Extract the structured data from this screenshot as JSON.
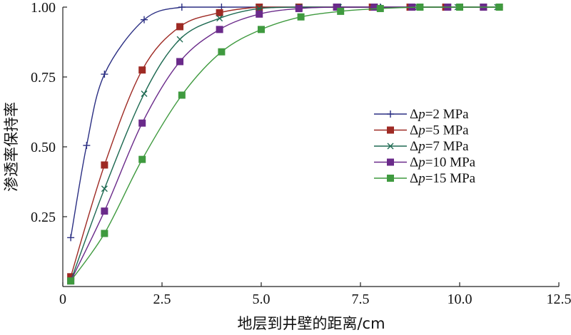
{
  "chart_data": {
    "type": "line",
    "xlabel": "地层到井壁的距离/cm",
    "ylabel": "渗透率保持率",
    "xlim": [
      0,
      12.5
    ],
    "ylim": [
      0,
      1.0
    ],
    "x_ticks": [
      "0",
      "2.5",
      "5.0",
      "7.5",
      "10.0",
      "12.5"
    ],
    "y_ticks": [
      "0.25",
      "0.50",
      "0.75",
      "1.00"
    ],
    "grid": false,
    "legend_position": "right",
    "series": [
      {
        "name": "Δp=2 MPa",
        "legend_prefix": "Δ",
        "legend_var": "p",
        "legend_rest": "=2 MPa",
        "color": "#2b2f83",
        "marker": "plus",
        "x": [
          0.2,
          0.6,
          1.05,
          2.05,
          3.0,
          4.0,
          5.0,
          6.0,
          7.0,
          8.0,
          9.0,
          10.0,
          11.0
        ],
        "y": [
          0.175,
          0.505,
          0.76,
          0.955,
          1.0,
          1.0,
          1.0,
          1.0,
          1.0,
          1.0,
          1.0,
          1.0,
          1.0
        ]
      },
      {
        "name": "Δp=5 MPa",
        "legend_prefix": "Δ",
        "legend_var": "p",
        "legend_rest": "=5 MPa",
        "color": "#9e2a24",
        "marker": "square",
        "x": [
          0.2,
          1.05,
          2.0,
          2.95,
          3.95,
          4.95,
          5.95,
          6.9,
          7.8,
          8.75,
          9.65,
          10.6,
          11.0
        ],
        "y": [
          0.035,
          0.435,
          0.775,
          0.93,
          0.98,
          1.0,
          1.0,
          1.0,
          1.0,
          1.0,
          1.0,
          1.0,
          1.0
        ]
      },
      {
        "name": "Δp=7 MPa",
        "legend_prefix": "Δ",
        "legend_var": "p",
        "legend_rest": "=7 MPa",
        "color": "#1e6a52",
        "marker": "cross",
        "x": [
          0.2,
          1.05,
          2.05,
          2.95,
          3.95,
          4.95,
          5.95,
          6.95,
          7.95,
          8.95,
          9.95,
          10.95
        ],
        "y": [
          0.02,
          0.35,
          0.69,
          0.885,
          0.96,
          0.995,
          1.0,
          1.0,
          1.0,
          1.0,
          1.0,
          1.0
        ]
      },
      {
        "name": "Δp=10 MPa",
        "legend_prefix": "Δ",
        "legend_var": "p",
        "legend_rest": "=10 MPa",
        "color": "#6a2a8a",
        "marker": "square",
        "x": [
          0.2,
          1.05,
          2.0,
          2.95,
          3.95,
          4.95,
          5.95,
          6.9,
          7.85,
          8.8,
          9.7,
          10.6
        ],
        "y": [
          0.02,
          0.27,
          0.585,
          0.805,
          0.92,
          0.975,
          0.995,
          1.0,
          1.0,
          1.0,
          1.0,
          1.0
        ]
      },
      {
        "name": "Δp=15 MPa",
        "legend_prefix": "Δ",
        "legend_var": "p",
        "legend_rest": "=15 MPa",
        "color": "#3f9a3f",
        "marker": "square",
        "x": [
          0.2,
          1.05,
          2.0,
          3.0,
          4.0,
          5.0,
          6.0,
          7.0,
          8.0,
          9.0,
          10.0,
          11.0
        ],
        "y": [
          0.02,
          0.19,
          0.455,
          0.685,
          0.84,
          0.92,
          0.965,
          0.985,
          0.995,
          1.0,
          1.0,
          1.0
        ]
      }
    ]
  }
}
